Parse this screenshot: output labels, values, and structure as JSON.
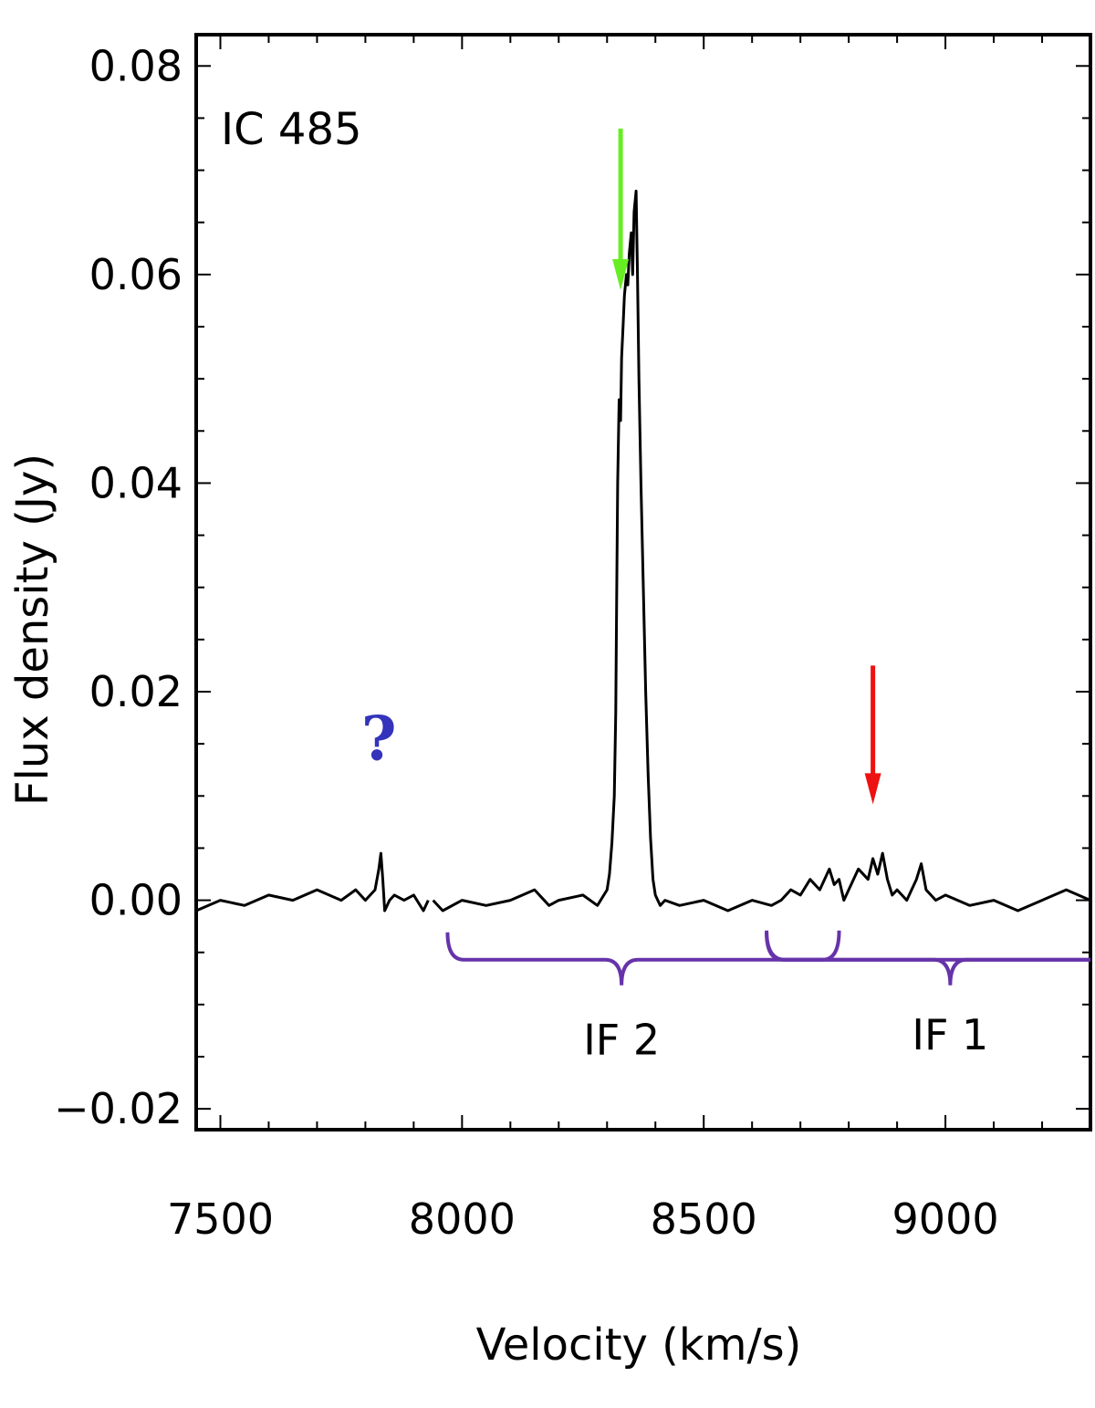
{
  "chart_data": {
    "type": "line",
    "title": "IC 485",
    "xlabel": "Velocity (km/s)",
    "ylabel": "Flux density (Jy)",
    "xlim": [
      7450,
      9300
    ],
    "ylim": [
      -0.022,
      0.083
    ],
    "x_ticks": [
      7500,
      8000,
      8500,
      9000
    ],
    "x_tick_labels": [
      "7500",
      "8000",
      "8500",
      "9000"
    ],
    "y_ticks": [
      -0.02,
      0.0,
      0.02,
      0.04,
      0.06,
      0.08
    ],
    "y_tick_labels": [
      "−0.02",
      "0.00",
      "0.02",
      "0.04",
      "0.06",
      "0.08"
    ],
    "grid": false,
    "series": [
      {
        "color": "#000000",
        "segments": [
          {
            "x": [
              7450,
              7500,
              7550,
              7600,
              7650,
              7700,
              7750,
              7780,
              7800,
              7810,
              7820,
              7828,
              7832,
              7836,
              7840,
              7850,
              7860,
              7880,
              7900,
              7920,
              7930
            ],
            "y": [
              -0.001,
              0.0,
              -0.0005,
              0.0005,
              0.0,
              0.001,
              0.0,
              0.001,
              0.0,
              0.0005,
              0.001,
              0.003,
              0.0045,
              0.002,
              -0.001,
              0.0,
              0.0005,
              0.0,
              0.0005,
              -0.001,
              0.0
            ]
          },
          {
            "x": [
              7940,
              7960,
              8000,
              8050,
              8100,
              8150,
              8180,
              8200,
              8250,
              8280,
              8300,
              8305,
              8310,
              8315,
              8318,
              8320,
              8322,
              8325,
              8328,
              8330,
              8333,
              8336,
              8340,
              8343,
              8346,
              8350,
              8353,
              8356,
              8360,
              8363,
              8366,
              8370,
              8375,
              8380,
              8385,
              8390,
              8395,
              8400,
              8410,
              8420,
              8450,
              8500,
              8550,
              8600,
              8640,
              8660,
              8680,
              8700,
              8720,
              8740,
              8760,
              8770,
              8780,
              8790,
              8800,
              8820,
              8840,
              8850,
              8860,
              8870,
              8880,
              8890,
              8900,
              8920,
              8940,
              8950,
              8960,
              8980,
              9000,
              9050,
              9100,
              9150,
              9200,
              9250,
              9300
            ],
            "y": [
              0.0,
              -0.001,
              0.0,
              -0.0005,
              0.0,
              0.001,
              -0.0005,
              0.0,
              0.0005,
              -0.0005,
              0.001,
              0.0025,
              0.0055,
              0.01,
              0.018,
              0.03,
              0.04,
              0.048,
              0.046,
              0.052,
              0.055,
              0.058,
              0.06,
              0.059,
              0.062,
              0.064,
              0.06,
              0.066,
              0.068,
              0.06,
              0.05,
              0.04,
              0.03,
              0.02,
              0.012,
              0.006,
              0.002,
              0.0005,
              -0.0005,
              0.0,
              -0.0005,
              0.0,
              -0.001,
              0.0,
              -0.0005,
              0.0,
              0.001,
              0.0005,
              0.002,
              0.001,
              0.003,
              0.0015,
              0.002,
              0.0,
              0.001,
              0.003,
              0.002,
              0.004,
              0.0025,
              0.0045,
              0.002,
              0.0005,
              0.001,
              0.0,
              0.002,
              0.0035,
              0.001,
              0.0,
              0.0005,
              -0.0005,
              0.0,
              -0.001,
              0.0,
              0.001,
              0.0
            ]
          }
        ]
      }
    ],
    "annotations": [
      {
        "text": "?",
        "kind": "question-mark",
        "color": "#3333bb",
        "x": 7828,
        "y": 0.0135
      },
      {
        "kind": "arrow",
        "color": "#66ee22",
        "x": 8328,
        "y_from": 0.074,
        "y_to": 0.0585
      },
      {
        "kind": "arrow",
        "color": "#ee1111",
        "x": 8850,
        "y_from": 0.0225,
        "y_to": 0.0092
      },
      {
        "text": "IF 2",
        "kind": "range-brace",
        "color": "#6633aa",
        "x_from": 7970,
        "x_to": 9300,
        "tip_x": 8330,
        "y": -0.0057,
        "label_x": 8330,
        "label_y": -0.0148
      },
      {
        "text": "IF 1",
        "kind": "range-brace",
        "color": "#6633aa",
        "x_from": 8630,
        "x_to": 9300,
        "tip_x": 9010,
        "y": -0.0057,
        "label_x": 9010,
        "label_y": -0.0143
      },
      {
        "kind": "small-bracket",
        "color": "#6633aa",
        "x_from": 8630,
        "x_to": 8780,
        "y": -0.0057
      }
    ]
  }
}
